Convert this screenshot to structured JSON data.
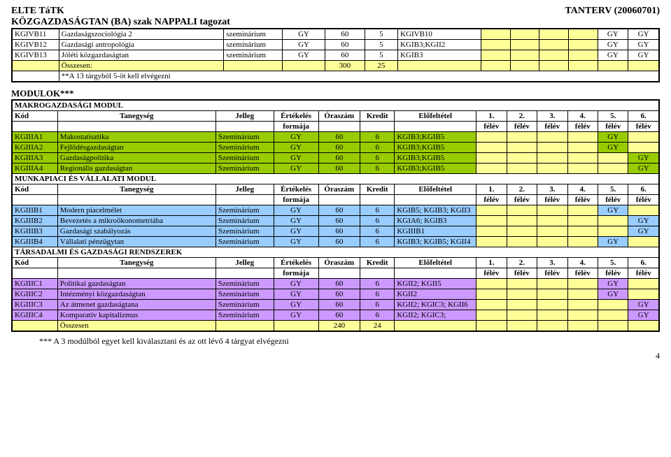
{
  "header": {
    "line1": "ELTE TáTK",
    "line2": "KÖZGAZDASÁGTAN (BA) szak NAPPALI tagozat",
    "tanterv": "TANTERV (20060701)"
  },
  "colors": {
    "yellow": "#ffff99",
    "green": "#99cc00",
    "blue": "#99ccff",
    "purple": "#cc99ff"
  },
  "table1": {
    "rows": [
      {
        "kod": "KGIVB11",
        "taneg": "Gazdaságszociológia 2",
        "jelleg": "szeminárium",
        "ert": "GY",
        "ora": "60",
        "kredit": "5",
        "elof": "KGIVB10",
        "felev": [
          null,
          null,
          null,
          null,
          "GY",
          "GY"
        ]
      },
      {
        "kod": "KGIVB12",
        "taneg": "Gazdasági antropológia",
        "jelleg": "szeminárium",
        "ert": "GY",
        "ora": "60",
        "kredit": "5",
        "elof": "KGIB3;KGII2",
        "felev": [
          null,
          null,
          null,
          null,
          "GY",
          "GY"
        ]
      },
      {
        "kod": "KGIVB13",
        "taneg": "Jóléti közgazdaságtan",
        "jelleg": "szeminárium",
        "ert": "GY",
        "ora": "60",
        "kredit": "5",
        "elof": "KGIB3",
        "felev": [
          null,
          null,
          null,
          null,
          "GY",
          "GY"
        ]
      }
    ],
    "total": {
      "label": "Összesen:",
      "note": "**A 13 tárgyból 5-öt kell elvégezni",
      "ora": "300",
      "kredit": "25"
    }
  },
  "modulok_title": "MODULOK***",
  "modules": {
    "makro": {
      "title": "MAKROGAZDASÁGI MODUL",
      "header": {
        "kod": "Kód",
        "taneg": "Tanegység",
        "jelleg": "Jelleg",
        "ert": "Értékelés",
        "ert2": "formája",
        "ora": "Óraszám",
        "kredit": "Kredit",
        "elof": "Előfeltétel",
        "felev": [
          "1.",
          "2.",
          "3.",
          "4.",
          "5.",
          "6."
        ],
        "felev2": "félév"
      },
      "rows": [
        {
          "kod": "KGIIIA1",
          "taneg": "Makostatisztika",
          "jelleg": "Szeminárium",
          "ert": "GY",
          "ora": "60",
          "kredit": "6",
          "elof": "KGIB3;KGIB5",
          "gy_col": 5,
          "color": "green"
        },
        {
          "kod": "KGIIIA2",
          "taneg": "Fejlődésgazdaságtan",
          "jelleg": "Szeminárium",
          "ert": "GY",
          "ora": "60",
          "kredit": "6",
          "elof": "KGIB3;KGIB5",
          "gy_col": 5,
          "color": "green"
        },
        {
          "kod": "KGIIIA3",
          "taneg": "Gazdaságpolitika",
          "jelleg": "Szeminárium",
          "ert": "GY",
          "ora": "60",
          "kredit": "6",
          "elof": "KGIB3;KGIB5",
          "gy_col": 6,
          "color": "green"
        },
        {
          "kod": "KGIIIA4",
          "taneg": "Regionális gazdaságtan",
          "jelleg": "Szeminárium",
          "ert": "GY",
          "ora": "60",
          "kredit": "6",
          "elof": "KGIB3;KGIB5",
          "gy_col": 6,
          "color": "green"
        }
      ]
    },
    "munkapiaci": {
      "title": "MUNKAPIACI ÉS VÁLLALATI MODUL",
      "rows": [
        {
          "kod": "KGIIIB1",
          "taneg": "Modern piacelmélet",
          "jelleg": "Szeminárium",
          "ert": "GY",
          "ora": "60",
          "kredit": "6",
          "elof": "KGIB5; KGIB3; KGII3",
          "gy_col": 5,
          "color": "blue"
        },
        {
          "kod": "KGIIIB2",
          "taneg": "Bevezetés a mikroökonometriába",
          "jelleg": "Szeminárium",
          "ert": "GY",
          "ora": "60",
          "kredit": "6",
          "elof": "KGIA6; KGIB3",
          "gy_col": 6,
          "color": "blue"
        },
        {
          "kod": "KGIIIB3",
          "taneg": "Gazdasági szabályozás",
          "jelleg": "Szeminárium",
          "ert": "GY",
          "ora": "60",
          "kredit": "6",
          "elof": "KGIIIB1",
          "gy_col": 6,
          "color": "blue"
        },
        {
          "kod": "KGIIIB4",
          "taneg": "Vállalati pénzügytan",
          "jelleg": "Szeminárium",
          "ert": "GY",
          "ora": "60",
          "kredit": "6",
          "elof": "KGIB3; KGIB5; KGII4",
          "gy_col": 5,
          "color": "blue"
        }
      ]
    },
    "tarsadalmi": {
      "title": "TÁRSADALMI ÉS GAZDASÁGI RENDSZEREK",
      "rows": [
        {
          "kod": "KGIIIC1",
          "taneg": "Politikai gazdaságtan",
          "jelleg": "Szeminárium",
          "ert": "GY",
          "ora": "60",
          "kredit": "6",
          "elof": "KGII2; KGII5",
          "gy_col": 5,
          "color": "purple"
        },
        {
          "kod": "KGIIIC2",
          "taneg": "Intézményi közgazdaságtan",
          "jelleg": "Szeminárium",
          "ert": "GY",
          "ora": "60",
          "kredit": "6",
          "elof": "KGII2",
          "gy_col": 5,
          "color": "purple"
        },
        {
          "kod": "KGIIIC3",
          "taneg": "Az átmenet gazdaságtana",
          "jelleg": "Szeminárium",
          "ert": "GY",
          "ora": "60",
          "kredit": "6",
          "elof": "KGII2; KGIC3; KGII6",
          "gy_col": 6,
          "color": "purple"
        },
        {
          "kod": "KGIIIC4",
          "taneg": "Komparatív kapitalizmus",
          "jelleg": "Szeminárium",
          "ert": "GY",
          "ora": "60",
          "kredit": "6",
          "elof": "KGII2; KGIC3;",
          "gy_col": 6,
          "color": "purple"
        }
      ],
      "total": {
        "label": "Összesen",
        "ora": "240",
        "kredit": "24"
      }
    }
  },
  "footnote": "*** A 3 modúlból egyet kell kiválasztani és az ott lévő 4 tárgyat elvégezni",
  "page_num": "4"
}
